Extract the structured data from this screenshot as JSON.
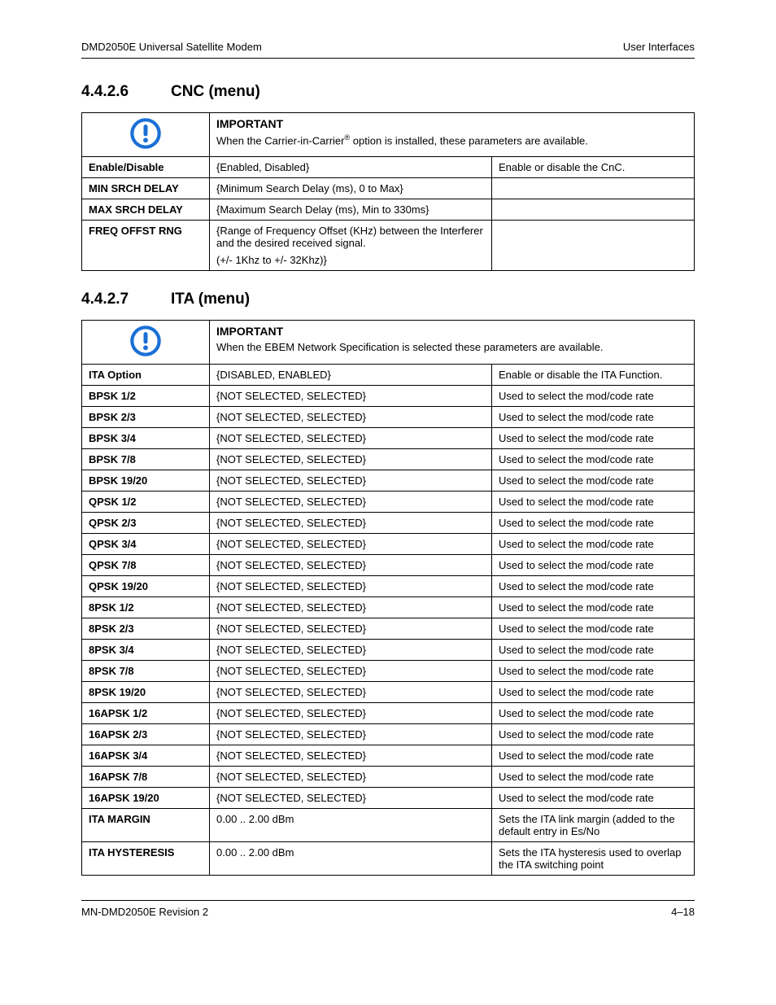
{
  "header": {
    "left": "DMD2050E Universal Satellite Modem",
    "right": "User Interfaces"
  },
  "footer": {
    "left": "MN-DMD2050E    Revision 2",
    "right": "4–18"
  },
  "sections": [
    {
      "number": "4.4.2.6",
      "title": "CNC (menu)",
      "important": {
        "label": "IMPORTANT",
        "text_pre": "When the Carrier-in-Carrier",
        "text_sup": "®",
        "text_post": " option is installed, these parameters are available."
      },
      "rows": [
        {
          "label": "Enable/Disable",
          "value": "{Enabled, Disabled}",
          "desc": "Enable or disable the CnC."
        },
        {
          "label": "MIN SRCH DELAY",
          "value": "{Minimum Search Delay (ms), 0 to Max}",
          "desc": ""
        },
        {
          "label": "MAX SRCH DELAY",
          "value": "{Maximum Search Delay (ms), Min to 330ms}",
          "desc": ""
        },
        {
          "label": "FREQ OFFST RNG",
          "value": "{Range of Frequency Offset (KHz) between the Interferer and the desired received signal.\n(+/- 1Khz to +/- 32Khz)}",
          "desc": ""
        }
      ]
    },
    {
      "number": "4.4.2.7",
      "title": "ITA (menu)",
      "important": {
        "label": "IMPORTANT",
        "text_pre": "When the EBEM Network Specification is selected these parameters are available.",
        "text_sup": "",
        "text_post": ""
      },
      "rows": [
        {
          "label": "ITA Option",
          "value": "{DISABLED, ENABLED}",
          "desc": "Enable or disable the ITA Function."
        },
        {
          "label": "BPSK 1/2",
          "value": "{NOT SELECTED, SELECTED}",
          "desc": "Used to select the mod/code rate"
        },
        {
          "label": "BPSK 2/3",
          "value": "{NOT SELECTED, SELECTED}",
          "desc": "Used to select the mod/code rate"
        },
        {
          "label": "BPSK 3/4",
          "value": "{NOT SELECTED, SELECTED}",
          "desc": "Used to select the mod/code rate"
        },
        {
          "label": "BPSK 7/8",
          "value": "{NOT SELECTED, SELECTED}",
          "desc": "Used to select the mod/code rate"
        },
        {
          "label": "BPSK 19/20",
          "value": "{NOT SELECTED, SELECTED}",
          "desc": "Used to select the mod/code rate"
        },
        {
          "label": "QPSK 1/2",
          "value": "{NOT SELECTED, SELECTED}",
          "desc": "Used to select the mod/code rate"
        },
        {
          "label": "QPSK 2/3",
          "value": "{NOT SELECTED, SELECTED}",
          "desc": "Used to select the mod/code rate"
        },
        {
          "label": "QPSK 3/4",
          "value": "{NOT SELECTED, SELECTED}",
          "desc": "Used to select the mod/code rate"
        },
        {
          "label": "QPSK 7/8",
          "value": "{NOT SELECTED, SELECTED}",
          "desc": "Used to select the mod/code rate"
        },
        {
          "label": "QPSK 19/20",
          "value": "{NOT SELECTED, SELECTED}",
          "desc": "Used to select the mod/code rate"
        },
        {
          "label": "8PSK 1/2",
          "value": "{NOT SELECTED, SELECTED}",
          "desc": "Used to select the mod/code rate"
        },
        {
          "label": "8PSK 2/3",
          "value": "{NOT SELECTED, SELECTED}",
          "desc": "Used to select the mod/code rate"
        },
        {
          "label": "8PSK 3/4",
          "value": "{NOT SELECTED, SELECTED}",
          "desc": "Used to select the mod/code rate"
        },
        {
          "label": "8PSK 7/8",
          "value": "{NOT SELECTED, SELECTED}",
          "desc": "Used to select the mod/code rate"
        },
        {
          "label": "8PSK 19/20",
          "value": "{NOT SELECTED, SELECTED}",
          "desc": "Used to select the mod/code rate"
        },
        {
          "label": "16APSK 1/2",
          "value": "{NOT SELECTED, SELECTED}",
          "desc": "Used to select the mod/code rate"
        },
        {
          "label": "16APSK 2/3",
          "value": "{NOT SELECTED, SELECTED}",
          "desc": "Used to select the mod/code rate"
        },
        {
          "label": "16APSK 3/4",
          "value": "{NOT SELECTED, SELECTED}",
          "desc": "Used to select the mod/code rate"
        },
        {
          "label": "16APSK 7/8",
          "value": "{NOT SELECTED, SELECTED}",
          "desc": "Used to select the mod/code rate"
        },
        {
          "label": "16APSK 19/20",
          "value": "{NOT SELECTED, SELECTED}",
          "desc": "Used to select the mod/code rate"
        },
        {
          "label": "ITA MARGIN",
          "value": "0.00 .. 2.00 dBm",
          "desc": "Sets the ITA link margin (added to the default entry in Es/No"
        },
        {
          "label": "ITA HYSTERESIS",
          "value": "0.00 .. 2.00 dBm",
          "desc": "Sets the ITA hysteresis used to overlap the ITA switching point"
        }
      ]
    }
  ],
  "icon": {
    "stroke": "#1a6fd6",
    "fill_bg": "#ffffff",
    "fill_mark": "#1a6fd6"
  }
}
